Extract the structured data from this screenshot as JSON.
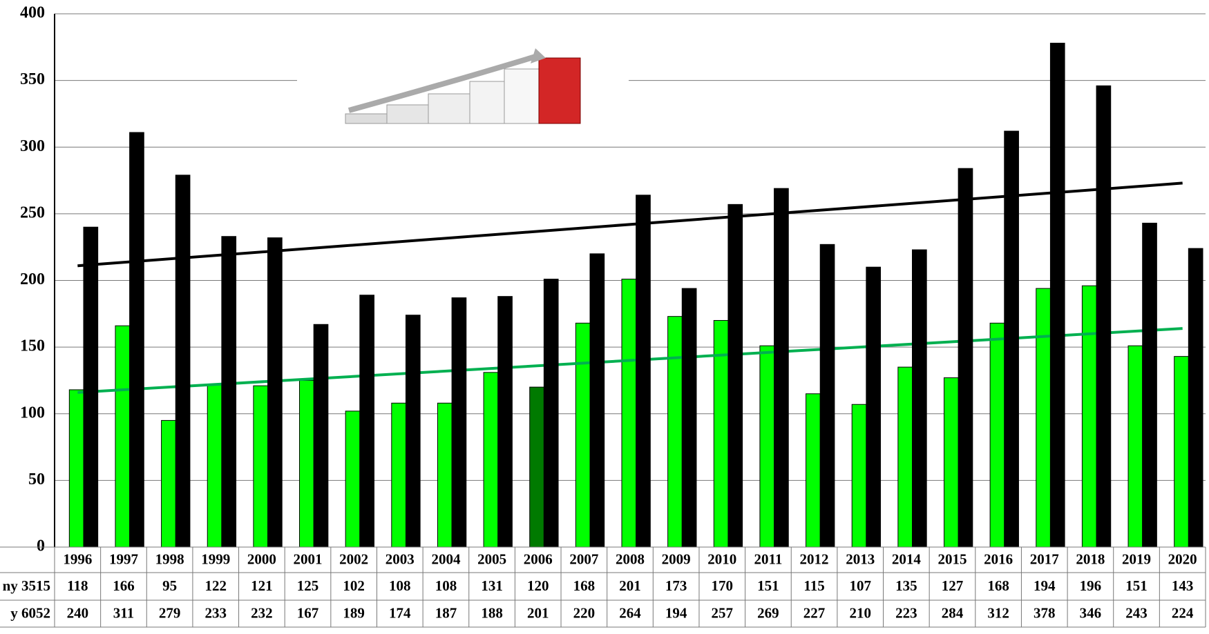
{
  "chart_data": {
    "type": "bar",
    "categories": [
      "1996",
      "1997",
      "1998",
      "1999",
      "2000",
      "2001",
      "2002",
      "2003",
      "2004",
      "2005",
      "2006",
      "2007",
      "2008",
      "2009",
      "2010",
      "2011",
      "2012",
      "2013",
      "2014",
      "2015",
      "2016",
      "2017",
      "2018",
      "2019",
      "2020"
    ],
    "series": [
      {
        "name": "ny 3515",
        "color": "#00ff00",
        "highlight": {
          "index": 10,
          "color": "#007a00"
        },
        "values": [
          118,
          166,
          95,
          122,
          121,
          125,
          102,
          108,
          108,
          131,
          120,
          168,
          201,
          173,
          170,
          151,
          115,
          107,
          135,
          127,
          168,
          194,
          196,
          151,
          143
        ],
        "trendline": {
          "color": "#00b050",
          "values": [
            116,
            164
          ]
        }
      },
      {
        "name": "y 6052",
        "color": "#000000",
        "values": [
          240,
          311,
          279,
          233,
          232,
          167,
          189,
          174,
          187,
          188,
          201,
          220,
          264,
          194,
          257,
          269,
          227,
          210,
          223,
          284,
          312,
          378,
          346,
          243,
          224
        ],
        "trendline": {
          "color": "#000000",
          "values": [
            211,
            273
          ]
        }
      }
    ],
    "ylim": [
      0,
      400
    ],
    "yticks": [
      0,
      50,
      100,
      150,
      200,
      250,
      300,
      350,
      400
    ],
    "grid": true,
    "data_table": true
  }
}
